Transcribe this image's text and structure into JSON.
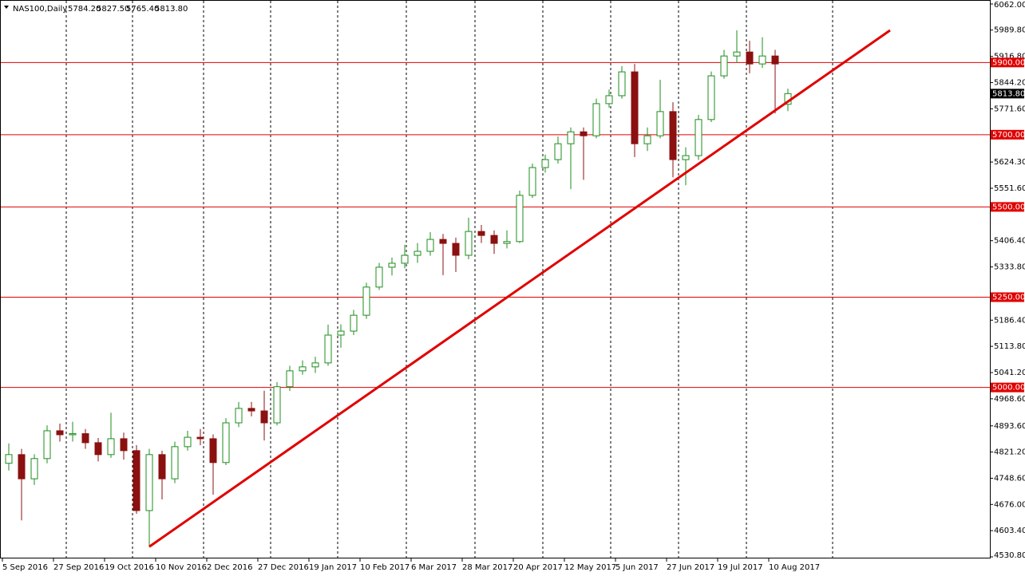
{
  "chart_data": {
    "type": "candlestick",
    "title": "NAS100,Daily",
    "header_values": [
      "5784.20",
      "5827.50",
      "5765.40",
      "5813.80"
    ],
    "categories": [
      "5 Sep 2016",
      null,
      null,
      null,
      "27 Sep 2016",
      null,
      null,
      null,
      "19 Oct 2016",
      null,
      null,
      null,
      "10 Nov 2016",
      null,
      null,
      null,
      "2 Dec 2016",
      null,
      null,
      null,
      "27 Dec 2016",
      null,
      null,
      null,
      "19 Jan 2017",
      null,
      null,
      null,
      "10 Feb 2017",
      null,
      null,
      null,
      "6 Mar 2017",
      null,
      null,
      null,
      "28 Mar 2017",
      null,
      null,
      null,
      "20 Apr 2017",
      null,
      null,
      null,
      "12 May 2017",
      null,
      null,
      null,
      "5 Jun 2017",
      null,
      null,
      null,
      "27 Jun 2017",
      null,
      null,
      null,
      "19 Jul 2017",
      null,
      null,
      null,
      "10 Aug 2017",
      null
    ],
    "ohlc": [
      [
        4790,
        4845,
        4770,
        4814
      ],
      [
        4814,
        4830,
        4632,
        4747
      ],
      [
        4747,
        4815,
        4730,
        4803
      ],
      [
        4803,
        4895,
        4790,
        4880
      ],
      [
        4880,
        4900,
        4850,
        4869
      ],
      [
        4869,
        4905,
        4850,
        4872
      ],
      [
        4872,
        4885,
        4830,
        4847
      ],
      [
        4847,
        4860,
        4795,
        4814
      ],
      [
        4814,
        4930,
        4805,
        4858
      ],
      [
        4858,
        4875,
        4800,
        4825
      ],
      [
        4825,
        4840,
        4650,
        4659
      ],
      [
        4659,
        4830,
        4559,
        4814
      ],
      [
        4814,
        4825,
        4690,
        4747
      ],
      [
        4747,
        4850,
        4735,
        4836
      ],
      [
        4836,
        4880,
        4825,
        4862
      ],
      [
        4862,
        4885,
        4840,
        4858
      ],
      [
        4858,
        4870,
        4703,
        4792
      ],
      [
        4792,
        4915,
        4785,
        4902
      ],
      [
        4902,
        4960,
        4890,
        4942
      ],
      [
        4942,
        4960,
        4920,
        4935
      ],
      [
        4935,
        4991,
        4853,
        4902
      ],
      [
        4902,
        5015,
        4895,
        5002
      ],
      [
        5002,
        5060,
        4990,
        5046
      ],
      [
        5046,
        5075,
        5035,
        5057
      ],
      [
        5057,
        5085,
        5040,
        5068
      ],
      [
        5068,
        5174,
        5060,
        5145
      ],
      [
        5145,
        5175,
        5110,
        5156
      ],
      [
        5156,
        5215,
        5145,
        5200
      ],
      [
        5200,
        5290,
        5190,
        5278
      ],
      [
        5278,
        5345,
        5270,
        5333
      ],
      [
        5333,
        5360,
        5310,
        5344
      ],
      [
        5344,
        5395,
        5330,
        5366
      ],
      [
        5366,
        5400,
        5345,
        5377
      ],
      [
        5377,
        5430,
        5365,
        5410
      ],
      [
        5410,
        5425,
        5311,
        5399
      ],
      [
        5399,
        5415,
        5320,
        5366
      ],
      [
        5366,
        5470,
        5355,
        5432
      ],
      [
        5432,
        5450,
        5400,
        5421
      ],
      [
        5421,
        5435,
        5370,
        5399
      ],
      [
        5399,
        5435,
        5385,
        5404
      ],
      [
        5404,
        5545,
        5400,
        5532
      ],
      [
        5532,
        5620,
        5525,
        5609
      ],
      [
        5609,
        5645,
        5595,
        5631
      ],
      [
        5631,
        5695,
        5620,
        5675
      ],
      [
        5675,
        5720,
        5549,
        5708
      ],
      [
        5708,
        5720,
        5575,
        5697
      ],
      [
        5697,
        5800,
        5690,
        5786
      ],
      [
        5786,
        5825,
        5775,
        5808
      ],
      [
        5808,
        5890,
        5800,
        5874
      ],
      [
        5874,
        5896,
        5638,
        5675
      ],
      [
        5675,
        5720,
        5655,
        5697
      ],
      [
        5697,
        5852,
        5690,
        5764
      ],
      [
        5764,
        5790,
        5582,
        5631
      ],
      [
        5631,
        5665,
        5560,
        5642
      ],
      [
        5642,
        5755,
        5630,
        5742
      ],
      [
        5742,
        5875,
        5735,
        5863
      ],
      [
        5863,
        5935,
        5855,
        5918
      ],
      [
        5918,
        5989,
        5900,
        5929
      ],
      [
        5929,
        5960,
        5870,
        5896
      ],
      [
        5896,
        5970,
        5885,
        5918
      ],
      [
        5918,
        5935,
        5759,
        5896
      ],
      [
        5784.2,
        5827.5,
        5765.4,
        5813.8
      ]
    ],
    "bull_color": "#1e8c1e",
    "bear_color": "#8b1010",
    "ylim": [
      4530.8,
      6062
    ],
    "yticks": [
      {
        "value": 6062,
        "label": "6062.00"
      },
      {
        "value": 5989.8,
        "label": "5989.80"
      },
      {
        "value": 5916.8,
        "label": "5916.80"
      },
      {
        "value": 5844.2,
        "label": "5844.20"
      },
      {
        "value": 5771.6,
        "label": "5771.60"
      },
      {
        "value": 5624.3,
        "label": "5624.30"
      },
      {
        "value": 5551.6,
        "label": "5551.60"
      },
      {
        "value": 5406.4,
        "label": "5406.40"
      },
      {
        "value": 5333.8,
        "label": "5333.80"
      },
      {
        "value": 5186.4,
        "label": "5186.40"
      },
      {
        "value": 5113.8,
        "label": "5113.80"
      },
      {
        "value": 5041.2,
        "label": "5041.20"
      },
      {
        "value": 4968.6,
        "label": "4968.60"
      },
      {
        "value": 4893.6,
        "label": "4893.60"
      },
      {
        "value": 4821.2,
        "label": "4821.20"
      },
      {
        "value": 4748.6,
        "label": "4748.60"
      },
      {
        "value": 4676,
        "label": "4676.00"
      },
      {
        "value": 4603.4,
        "label": "4603.40"
      },
      {
        "value": 4530.8,
        "label": "4530.80"
      }
    ],
    "levels": [
      {
        "value": 5900,
        "label": "5900.00"
      },
      {
        "value": 5700,
        "label": "5700.00"
      },
      {
        "value": 5500,
        "label": "5500.00"
      },
      {
        "value": 5250,
        "label": "5250.00"
      },
      {
        "value": 5000,
        "label": "5000.00"
      }
    ],
    "level_color": "#e00000",
    "last_price": {
      "value": 5813.8,
      "label": "5813.80"
    },
    "trendline": {
      "start": [
        11,
        4559
      ],
      "end": [
        69,
        5989
      ]
    }
  }
}
